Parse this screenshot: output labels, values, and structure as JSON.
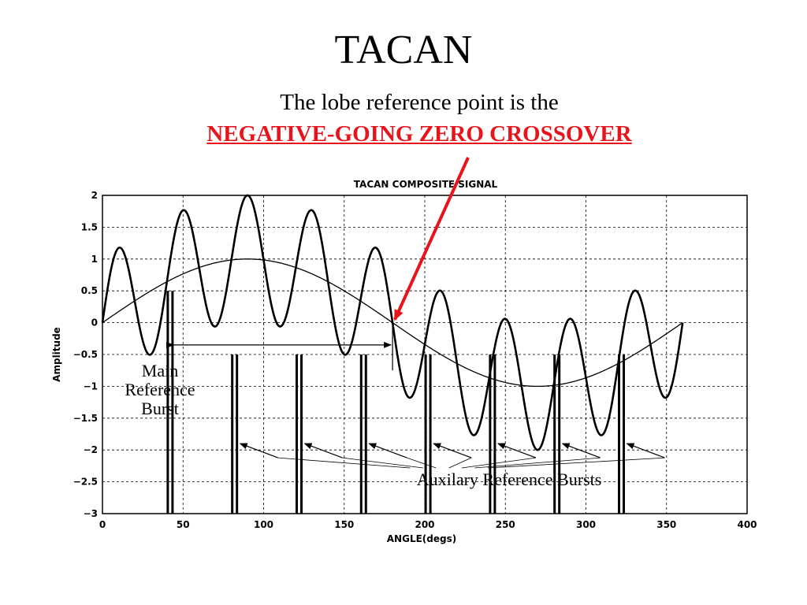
{
  "slide": {
    "title": "TACAN",
    "subtitle_line1": "The lobe reference point is the",
    "subtitle_line2": "NEGATIVE-GOING ZERO CROSSOVER",
    "highlight_color": "#e8141b"
  },
  "chart_data": {
    "type": "line",
    "title": "TACAN COMPOSITE SIGNAL",
    "xlabel": "ANGLE(degs)",
    "ylabel": "Amplitude",
    "xlim": [
      0,
      400
    ],
    "ylim": [
      -3,
      2
    ],
    "xticks": [
      "0",
      "50",
      "100",
      "150",
      "200",
      "250",
      "300",
      "350",
      "400"
    ],
    "yticks": [
      "2",
      "1.5",
      "1",
      "0.5",
      "0",
      "-0.5",
      "-1",
      "-1.5",
      "-2",
      "-2.5",
      "-3"
    ],
    "grid": true,
    "series": [
      {
        "description": "15 Hz component: sin(x)",
        "x_range": [
          0,
          360
        ],
        "formula_amplitude": 1,
        "formula_cycles_per_360": 1
      },
      {
        "description": "composite: sin(x) + sin(9x)",
        "x_range": [
          0,
          360
        ],
        "formula_amplitude": 1,
        "formula_cycles_per_360": 9
      }
    ],
    "main_reference_burst": {
      "x": 42,
      "ymin": -3,
      "ymax": 0.5
    },
    "auxiliary_reference_bursts": [
      {
        "x": 82,
        "ymin": -3,
        "ymax": -0.5
      },
      {
        "x": 122,
        "ymin": -3,
        "ymax": -0.5
      },
      {
        "x": 162,
        "ymin": -3,
        "ymax": -0.5
      },
      {
        "x": 202,
        "ymin": -3,
        "ymax": -0.5
      },
      {
        "x": 242,
        "ymin": -3,
        "ymax": -0.5
      },
      {
        "x": 282,
        "ymin": -3,
        "ymax": -0.5
      },
      {
        "x": 322,
        "ymin": -3,
        "ymax": -0.5
      }
    ],
    "annotations": {
      "main_burst_label": [
        "Main",
        "Reference",
        "Burst"
      ],
      "aux_burst_label": "Auxilary Reference Bursts",
      "span_arrow": {
        "from": 42,
        "to": 180,
        "y": -0.35
      }
    }
  }
}
